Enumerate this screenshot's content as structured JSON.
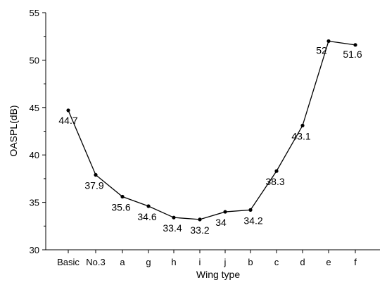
{
  "chart_data": {
    "type": "line",
    "title": "",
    "xlabel": "Wing type",
    "ylabel": "OASPL(dB)",
    "categories": [
      "Basic",
      "No.3",
      "a",
      "g",
      "h",
      "i",
      "j",
      "b",
      "c",
      "d",
      "e",
      "f"
    ],
    "series": [
      {
        "values": [
          44.7,
          37.9,
          35.6,
          34.6,
          33.4,
          33.2,
          34,
          34.2,
          38.3,
          43.1,
          52,
          51.6
        ],
        "labels": [
          "44.7",
          "37.9",
          "35.6",
          "34.6",
          "33.4",
          "33.2",
          "34",
          "34.2",
          "38.3",
          "43.1",
          "52",
          "51.6"
        ],
        "color": "#000000"
      }
    ],
    "ylim": [
      30,
      55
    ],
    "yticks": [
      30,
      35,
      40,
      45,
      50,
      55
    ],
    "grid": false,
    "legend": "none",
    "markers": "circle"
  }
}
